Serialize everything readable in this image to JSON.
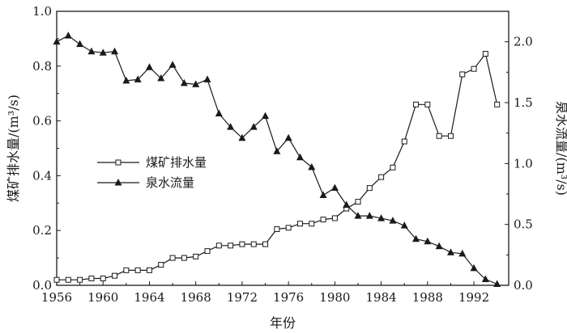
{
  "chart_data": {
    "type": "line",
    "xlabel": "年份",
    "ylabel_left": "煤矿排水量/(m³/s)",
    "ylabel_right": "泉水流量/(m³/s)",
    "xlim": [
      1956,
      1995
    ],
    "ylim_left": [
      0,
      1.0
    ],
    "ylim_right": [
      0,
      2.25
    ],
    "x_ticks": [
      1956,
      1960,
      1964,
      1968,
      1972,
      1976,
      1980,
      1984,
      1988,
      1992
    ],
    "y_left_ticks": [
      0.0,
      0.2,
      0.4,
      0.6,
      0.8,
      1.0
    ],
    "y_right_ticks": [
      0.0,
      0.5,
      1.0,
      1.5,
      2.0
    ],
    "legend_position": "center-left",
    "grid": false,
    "series": [
      {
        "name": "煤矿排水量",
        "axis": "left",
        "marker": "square-open",
        "x": [
          1956,
          1957,
          1958,
          1959,
          1960,
          1961,
          1962,
          1963,
          1964,
          1965,
          1966,
          1967,
          1968,
          1969,
          1970,
          1971,
          1972,
          1973,
          1974,
          1975,
          1976,
          1977,
          1978,
          1979,
          1980,
          1981,
          1982,
          1983,
          1984,
          1985,
          1986,
          1987,
          1988,
          1989,
          1990,
          1991,
          1992,
          1993,
          1994
        ],
        "values": [
          0.02,
          0.02,
          0.02,
          0.025,
          0.025,
          0.035,
          0.055,
          0.055,
          0.055,
          0.075,
          0.1,
          0.1,
          0.105,
          0.125,
          0.145,
          0.145,
          0.15,
          0.15,
          0.15,
          0.205,
          0.21,
          0.225,
          0.225,
          0.24,
          0.245,
          0.28,
          0.305,
          0.355,
          0.395,
          0.43,
          0.525,
          0.66,
          0.66,
          0.545,
          0.545,
          0.77,
          0.79,
          0.845,
          0.66
        ]
      },
      {
        "name": "泉水流量",
        "axis": "right",
        "marker": "triangle-filled",
        "x": [
          1956,
          1957,
          1958,
          1959,
          1960,
          1961,
          1962,
          1963,
          1964,
          1965,
          1966,
          1967,
          1968,
          1969,
          1970,
          1971,
          1972,
          1973,
          1974,
          1975,
          1976,
          1977,
          1978,
          1979,
          1980,
          1981,
          1982,
          1983,
          1984,
          1985,
          1986,
          1987,
          1988,
          1989,
          1990,
          1991,
          1992,
          1993,
          1994
        ],
        "values": [
          2.0,
          2.05,
          1.98,
          1.92,
          1.91,
          1.92,
          1.68,
          1.69,
          1.79,
          1.7,
          1.81,
          1.66,
          1.65,
          1.69,
          1.41,
          1.3,
          1.21,
          1.3,
          1.39,
          1.1,
          1.21,
          1.05,
          0.97,
          0.74,
          0.8,
          0.66,
          0.57,
          0.57,
          0.55,
          0.53,
          0.49,
          0.38,
          0.36,
          0.32,
          0.27,
          0.26,
          0.14,
          0.05,
          0.01
        ]
      }
    ]
  }
}
